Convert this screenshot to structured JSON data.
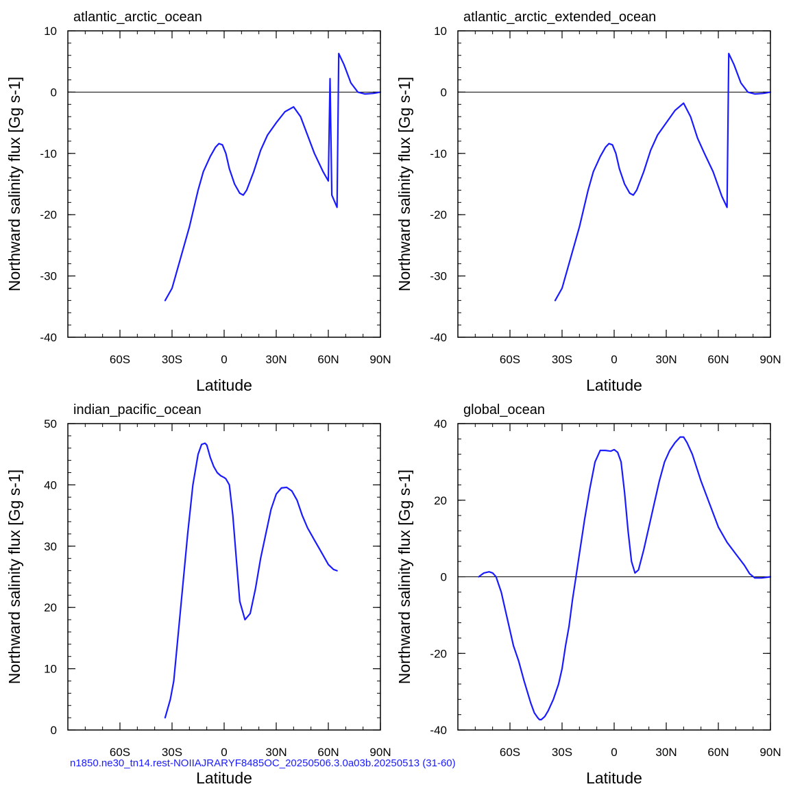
{
  "colors": {
    "series": "#1a1aff",
    "axes": "#000000",
    "footer": "#1a1aff"
  },
  "footer": "n1850.ne30_tn14.rest-NOIIAJRARYF8485OC_20250506.3.0a03b.20250513 (31-60)",
  "chart_data": [
    {
      "type": "line",
      "title": "atlantic_arctic_ocean",
      "xlabel": "Latitude",
      "ylabel": "Northward salinity flux [Gg s-1]",
      "xlim": [
        -90,
        90
      ],
      "ylim": [
        -40,
        10
      ],
      "x_ticks": [
        -60,
        -30,
        0,
        30,
        60,
        90
      ],
      "x_tick_labels": [
        "60S",
        "30S",
        "0",
        "30N",
        "60N",
        "90N"
      ],
      "y_ticks": [
        -40,
        -30,
        -20,
        -10,
        0,
        10
      ],
      "y_tick_labels": [
        "-40",
        "-30",
        "-20",
        "-10",
        "0",
        "10"
      ],
      "zero_line": true,
      "series": [
        {
          "x": [
            -34,
            -30,
            -27,
            -24,
            -20,
            -15,
            -12,
            -8,
            -5,
            -3,
            -1,
            1,
            3,
            6,
            9,
            11,
            13,
            17,
            21,
            25,
            30,
            35,
            40,
            44,
            48,
            52,
            57,
            60,
            61,
            62,
            65,
            66,
            69,
            73,
            77,
            81,
            86,
            90
          ],
          "y": [
            -34,
            -32,
            -29,
            -26,
            -22,
            -16,
            -13,
            -10.5,
            -9,
            -8.4,
            -8.6,
            -10,
            -12.5,
            -15,
            -16.5,
            -16.8,
            -16,
            -13,
            -9.5,
            -7,
            -5,
            -3.2,
            -2.4,
            -4,
            -7,
            -10,
            -13,
            -14.5,
            2.2,
            -16.8,
            -18.8,
            6.3,
            4.5,
            1.5,
            0,
            -0.3,
            -0.2,
            0
          ]
        }
      ]
    },
    {
      "type": "line",
      "title": "atlantic_arctic_extended_ocean",
      "xlabel": "Latitude",
      "ylabel": "Northward salinity flux [Gg s-1]",
      "xlim": [
        -90,
        90
      ],
      "ylim": [
        -40,
        10
      ],
      "x_ticks": [
        -60,
        -30,
        0,
        30,
        60,
        90
      ],
      "x_tick_labels": [
        "60S",
        "30S",
        "0",
        "30N",
        "60N",
        "90N"
      ],
      "y_ticks": [
        -40,
        -30,
        -20,
        -10,
        0,
        10
      ],
      "y_tick_labels": [
        "-40",
        "-30",
        "-20",
        "-10",
        "0",
        "10"
      ],
      "zero_line": true,
      "series": [
        {
          "x": [
            -34,
            -30,
            -27,
            -24,
            -20,
            -15,
            -12,
            -8,
            -5,
            -3,
            -1,
            1,
            3,
            6,
            9,
            11,
            13,
            17,
            21,
            25,
            30,
            35,
            40,
            44,
            48,
            52,
            57,
            62,
            65,
            66,
            69,
            73,
            77,
            81,
            86,
            90
          ],
          "y": [
            -34,
            -32,
            -29,
            -26,
            -22,
            -16,
            -13,
            -10.5,
            -9,
            -8.4,
            -8.6,
            -10,
            -12.5,
            -15,
            -16.5,
            -16.8,
            -16,
            -13,
            -9.5,
            -7,
            -5,
            -3,
            -1.8,
            -4,
            -7.5,
            -10,
            -13,
            -17,
            -18.8,
            6.3,
            4.5,
            1.5,
            0,
            -0.3,
            -0.2,
            0
          ]
        }
      ]
    },
    {
      "type": "line",
      "title": "indian_pacific_ocean",
      "xlabel": "Latitude",
      "ylabel": "Northward salinity flux [Gg s-1]",
      "xlim": [
        -90,
        90
      ],
      "ylim": [
        0,
        50
      ],
      "x_ticks": [
        -60,
        -30,
        0,
        30,
        60,
        90
      ],
      "x_tick_labels": [
        "60S",
        "30S",
        "0",
        "30N",
        "60N",
        "90N"
      ],
      "y_ticks": [
        0,
        10,
        20,
        30,
        40,
        50
      ],
      "y_tick_labels": [
        "0",
        "10",
        "20",
        "30",
        "40",
        "50"
      ],
      "zero_line": false,
      "series": [
        {
          "x": [
            -34,
            -31,
            -29,
            -27,
            -24,
            -21,
            -18,
            -15,
            -13,
            -11,
            -10,
            -9,
            -8,
            -6,
            -4,
            -2,
            0,
            1,
            3,
            5,
            7,
            9,
            12,
            15,
            18,
            21,
            24,
            27,
            30,
            33,
            36,
            39,
            42,
            45,
            48,
            52,
            56,
            60,
            63,
            65
          ],
          "y": [
            2,
            5,
            8,
            14,
            23,
            32,
            40,
            45,
            46.6,
            46.8,
            46.5,
            45.5,
            44.5,
            43,
            42,
            41.5,
            41.2,
            41,
            40,
            35,
            28,
            21,
            18,
            19,
            23,
            28,
            32,
            36,
            38.5,
            39.5,
            39.6,
            39,
            37.5,
            35,
            33,
            31,
            29,
            27,
            26.2,
            26
          ]
        }
      ]
    },
    {
      "type": "line",
      "title": "global_ocean",
      "xlabel": "Latitude",
      "ylabel": "Northward salinity flux [Gg s-1]",
      "xlim": [
        -90,
        90
      ],
      "ylim": [
        -40,
        40
      ],
      "x_ticks": [
        -60,
        -30,
        0,
        30,
        60,
        90
      ],
      "x_tick_labels": [
        "60S",
        "30S",
        "0",
        "30N",
        "60N",
        "90N"
      ],
      "y_ticks": [
        -40,
        -20,
        0,
        20,
        40
      ],
      "y_tick_labels": [
        "-40",
        "-20",
        "0",
        "20",
        "40"
      ],
      "zero_line": true,
      "series": [
        {
          "x": [
            -78,
            -75,
            -72,
            -70,
            -68,
            -65,
            -62,
            -58,
            -55,
            -52,
            -50,
            -48,
            -46,
            -44,
            -43,
            -42,
            -40,
            -38,
            -35,
            -32,
            -30,
            -28,
            -26,
            -24,
            -22,
            -20,
            -17,
            -14,
            -11,
            -8,
            -5,
            -2,
            0,
            2,
            4,
            6,
            8,
            10,
            12,
            14,
            17,
            20,
            23,
            26,
            29,
            32,
            35,
            38,
            40,
            42,
            45,
            50,
            55,
            60,
            65,
            70,
            75,
            78,
            81,
            85,
            90
          ],
          "y": [
            0,
            1,
            1.3,
            1,
            0,
            -4,
            -10,
            -18,
            -22,
            -27,
            -30,
            -33,
            -35.5,
            -36.8,
            -37.3,
            -37.3,
            -36.5,
            -35,
            -32,
            -28,
            -24,
            -18,
            -13,
            -6,
            0,
            6,
            15,
            23,
            30,
            33,
            33,
            32.8,
            33.2,
            32.5,
            30,
            22,
            12,
            4,
            1,
            1.8,
            7,
            13,
            19,
            25,
            30,
            33,
            35,
            36.5,
            36.5,
            35,
            32,
            25,
            19,
            13,
            9,
            6,
            3,
            0.8,
            -0.3,
            -0.3,
            0
          ]
        }
      ]
    }
  ]
}
